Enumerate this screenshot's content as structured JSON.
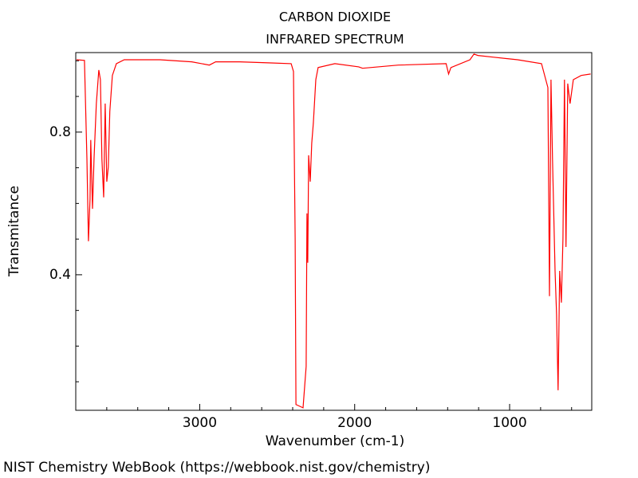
{
  "chart_data": {
    "type": "line",
    "title": "CARBON DIOXIDE",
    "subtitle": "INFRARED SPECTRUM",
    "x_label": "Wavenumber (cm-1)",
    "y_label": "Transmitance",
    "source": "NIST Chemistry WebBook (https://webbook.nist.gov/chemistry)",
    "color": "#ff0000",
    "x": [
      3795,
      3744,
      3728,
      3718,
      3708,
      3703,
      3692,
      3682,
      3667,
      3651,
      3641,
      3631,
      3620,
      3610,
      3600,
      3590,
      3580,
      3564,
      3538,
      3487,
      3257,
      3051,
      2938,
      2897,
      2743,
      2538,
      2410,
      2395,
      2384,
      2379,
      2333,
      2313,
      2308,
      2303,
      2297,
      2287,
      2277,
      2267,
      2251,
      2236,
      2128,
      1974,
      1949,
      1718,
      1410,
      1394,
      1379,
      1256,
      1230,
      1205,
      1102,
      948,
      794,
      753,
      743,
      733,
      723,
      707,
      697,
      687,
      677,
      666,
      656,
      646,
      636,
      625,
      610,
      589,
      538,
      477
    ],
    "values": [
      1.003,
      1.001,
      0.724,
      0.494,
      0.612,
      0.778,
      0.585,
      0.724,
      0.88,
      0.974,
      0.947,
      0.724,
      0.617,
      0.88,
      0.661,
      0.702,
      0.858,
      0.959,
      0.992,
      1.003,
      1.003,
      0.997,
      0.988,
      0.997,
      0.997,
      0.994,
      0.992,
      0.97,
      0.501,
      0.036,
      0.027,
      0.143,
      0.572,
      0.434,
      0.735,
      0.661,
      0.769,
      0.825,
      0.947,
      0.981,
      0.992,
      0.983,
      0.979,
      0.988,
      0.992,
      0.963,
      0.981,
      1.003,
      1.019,
      1.015,
      1.01,
      1.003,
      0.992,
      0.925,
      0.34,
      0.947,
      0.724,
      0.411,
      0.288,
      0.076,
      0.411,
      0.322,
      0.501,
      0.947,
      0.478,
      0.936,
      0.88,
      0.947,
      0.959,
      0.963
    ],
    "xlim": [
      3800,
      470
    ],
    "ylim": [
      0.02,
      1.023
    ],
    "xticks": [
      3000,
      2000,
      1000
    ],
    "yticks": [
      0.4,
      0.8
    ],
    "xminor": [
      3600,
      3400,
      3200,
      2800,
      2600,
      2400,
      2200,
      1800,
      1600,
      1400,
      1200,
      800,
      600
    ],
    "yminor": [
      0.1,
      0.2,
      0.3,
      0.5,
      0.6,
      0.7,
      0.9,
      1.0
    ]
  }
}
